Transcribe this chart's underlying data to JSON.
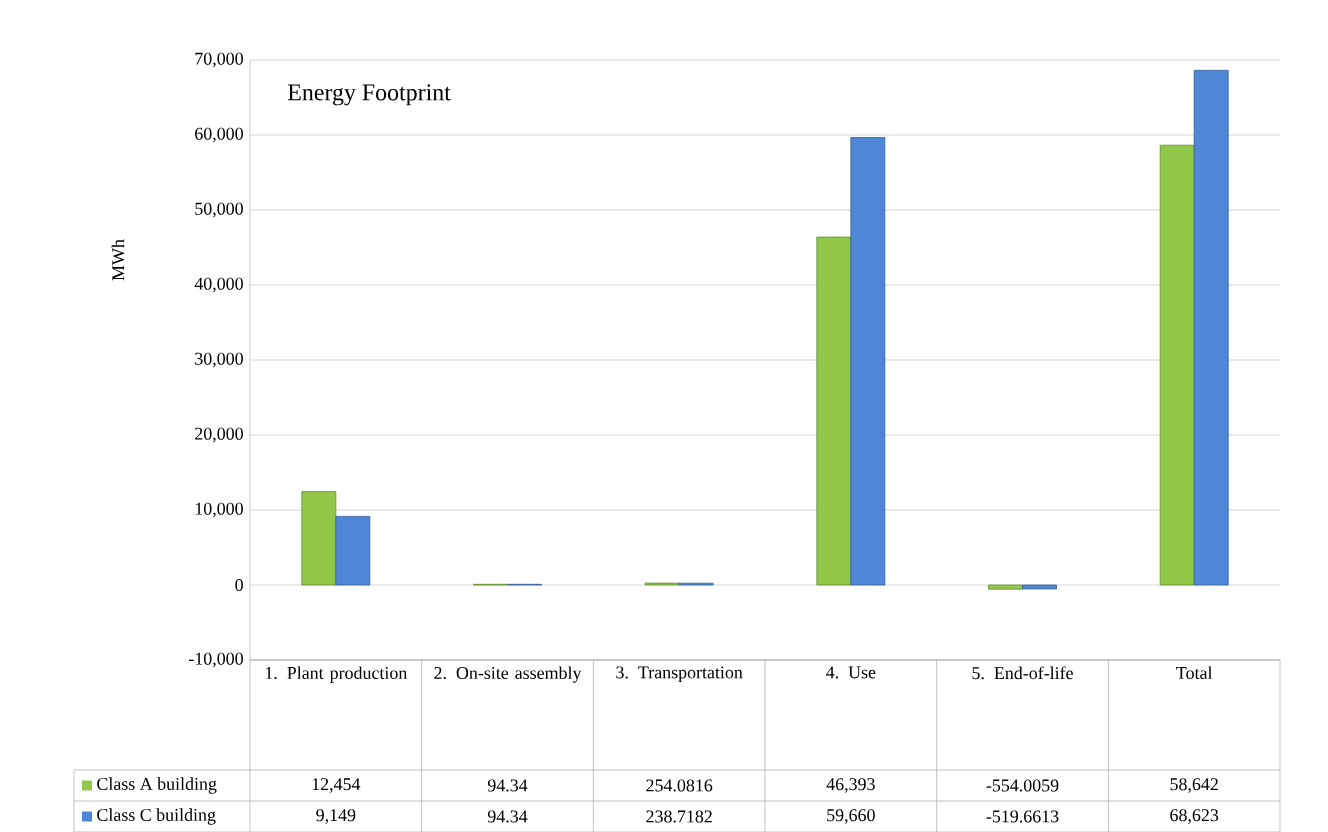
{
  "chart_data": {
    "type": "bar",
    "title": "Energy Footprint",
    "ylabel": "MWh",
    "categories": [
      "1. Plant production",
      "2. On-site assembly",
      "3. Transportation",
      "4. Use",
      "5. End-of-life",
      "Total"
    ],
    "series": [
      {
        "name": "Class A building",
        "color": "#92c84a",
        "values": [
          12454,
          94.34,
          254.0816,
          46393,
          -554.0059,
          58642
        ],
        "value_labels": [
          "12,454",
          "94.34",
          "254.0816",
          "46,393",
          "-554.0059",
          "58,642"
        ]
      },
      {
        "name": "Class C building",
        "color": "#4f86d6",
        "values": [
          9149,
          94.34,
          238.7182,
          59660,
          -519.6613,
          68623
        ],
        "value_labels": [
          "9,149",
          "94.34",
          "238.7182",
          "59,660",
          "-519.6613",
          "68,623"
        ]
      }
    ],
    "ylim": [
      -10000,
      70000
    ],
    "yticks": [
      {
        "value": -10000,
        "label": "-10,000"
      },
      0,
      {
        "value": 10000,
        "label": "10,000"
      },
      {
        "value": 20000,
        "label": "20,000"
      },
      {
        "value": 30000,
        "label": "30,000"
      },
      {
        "value": 40000,
        "label": "40,000"
      },
      {
        "value": 50000,
        "label": "50,000"
      },
      {
        "value": 60000,
        "label": "60,000"
      },
      {
        "value": 70000,
        "label": "70,000"
      }
    ],
    "grid": "y",
    "legend": "bottom left"
  }
}
